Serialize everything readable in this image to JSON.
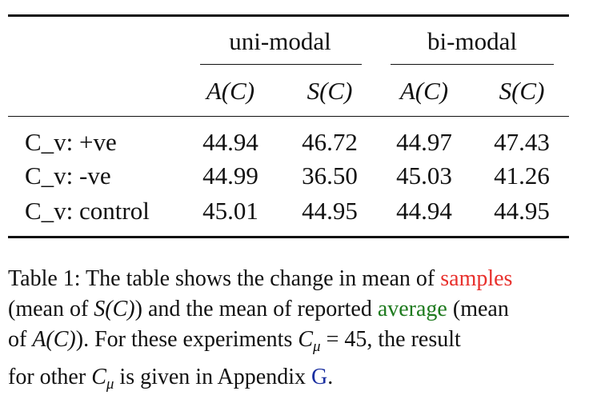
{
  "table": {
    "group_headers": [
      "uni-modal",
      "bi-modal"
    ],
    "sub_headers": [
      "A(C)",
      "S(C)",
      "A(C)",
      "S(C)"
    ],
    "rows": [
      {
        "label": "C_v: +ve",
        "values": [
          "44.94",
          "46.72",
          "44.97",
          "47.43"
        ]
      },
      {
        "label": "C_v: -ve",
        "values": [
          "44.99",
          "36.50",
          "45.03",
          "41.26"
        ]
      },
      {
        "label": "C_v: control",
        "values": [
          "45.01",
          "44.95",
          "44.94",
          "44.95"
        ]
      }
    ]
  },
  "caption": {
    "line1_prefix": "Table 1: The table shows the change in mean of ",
    "line1_highlight": "samples",
    "line2_a": "(mean of ",
    "line2_math": "S(C)",
    "line2_b": ") and the mean of reported ",
    "line2_highlight": "average",
    "line2_c": " (mean",
    "line3_a": "of ",
    "line3_math": "A(C)",
    "line3_b": "). For these experiments ",
    "line3_math2": "C",
    "line3_sub": "μ",
    "line3_c": " = 45, the result",
    "line4_a": "for other ",
    "line4_math": "C",
    "line4_sub": "μ",
    "line4_b": " is given in Appendix ",
    "line4_link": "G",
    "line4_end": ".",
    "colors": {
      "samples": "#e8302c",
      "average": "#1e7a1e",
      "link": "#1a2fa0"
    }
  }
}
